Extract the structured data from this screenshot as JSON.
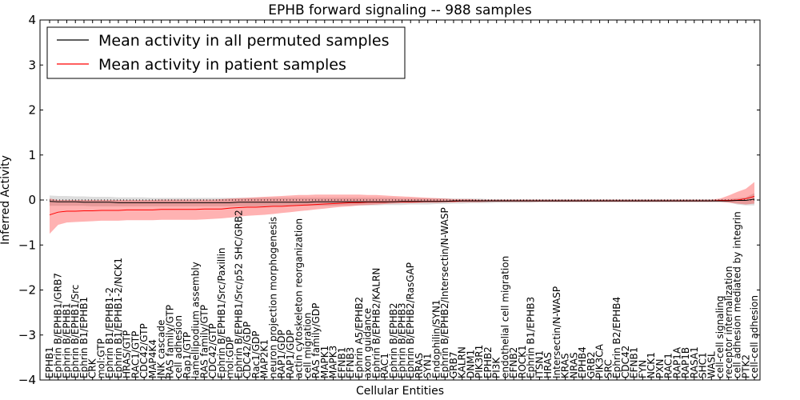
{
  "chart_data": {
    "type": "line",
    "title": "EPHB forward signaling -- 988 samples",
    "xlabel": "Cellular Entities",
    "ylabel": "Inferred Activity",
    "ylim": [
      -4,
      4
    ],
    "yticks": [
      -4,
      -3,
      -2,
      -1,
      0,
      1,
      2,
      3,
      4
    ],
    "ytick_labels": [
      "−4",
      "−3",
      "−2",
      "−1",
      "0",
      "1",
      "2",
      "3",
      "4"
    ],
    "legend_position": "top-left",
    "reference_line": {
      "value": 0,
      "style": "dotted"
    },
    "categories": [
      "EPHB1",
      "Ephrin B/EPHB1/GRB7",
      "Ephrin B/EPHB1",
      "Ephrin B/EPHB1/Src",
      "Ephrin B1/EPHB1",
      "CRK",
      "mol:GTP",
      "Ephrin B1/EPHB1-2",
      "Ephrin B1/EPHB1-2/NCK1",
      "HRAS/GTP",
      "RAC1/GTP",
      "CDC42/GTP",
      "MAP4K4",
      "JNK cascade",
      "RAS family/GTP",
      "cell adhesion",
      "Rap1/GTP",
      "lamellipodium assembly",
      "RAS family/GTP",
      "CDC42/GTP",
      "Ephrin B/EPHB1/Src/Paxillin",
      "mol:GDP",
      "Ephrin B/EPHB1/Src/p52 SHC/GRB2",
      "CDC42/GDP",
      "Rac1/GDP",
      "MAP2K1",
      "neuron projection morphogenesis",
      "RAP1/GDP",
      "RAP1/GDP",
      "actin cytoskeleton reorganization",
      "cell migration",
      "RAS family/GDP",
      "MAPK1",
      "MAPK3",
      "EFNB1",
      "EFNB3",
      "Ephrin A5/EPHB2",
      "axon guidance",
      "Ephrin B/EPHB2/KALRN",
      "RAC1",
      "Ephrin B/EPHB2",
      "Ephrin B/EPHB3",
      "Ephrin B/EPHB2/RasGAP",
      "RRAS",
      "SYN1",
      "Endophilin/SYN1",
      "Ephrin B/EPHB2/Intersectin/N-WASP",
      "GRB7",
      "KALRN",
      "DNM1",
      "PIK3R1",
      "EPHB2",
      "PI3K",
      "endothelial cell migration",
      "EFNB2",
      "ROCK1",
      "Ephrin B1/EPHB3",
      "ITSN1",
      "HRAS",
      "Intersectin/N-WASP",
      "KRAS",
      "NRAS",
      "EPHB4",
      "GRB2",
      "PIK3CA",
      "SRC",
      "Ephrin B2/EPHB4",
      "CDC42",
      "EFNB1",
      "FYN",
      "NCK1",
      "PXN",
      "RAC1",
      "RAP1A",
      "RAP1B",
      "RASA1",
      "SHC1",
      "WASL",
      "cell-cell signaling",
      "receptor internalization",
      "cell adhesion mediated by integrin",
      "PTK2",
      "cell-cell adhesion"
    ],
    "series": [
      {
        "name": "Mean activity in all permuted samples",
        "color": "#000000",
        "band_color": "#b4b4b4",
        "values": [
          -0.03,
          -0.04,
          -0.04,
          -0.04,
          -0.05,
          -0.05,
          -0.05,
          -0.05,
          -0.06,
          -0.06,
          -0.06,
          -0.06,
          -0.06,
          -0.06,
          -0.06,
          -0.06,
          -0.06,
          -0.06,
          -0.06,
          -0.06,
          -0.06,
          -0.06,
          -0.05,
          -0.05,
          -0.05,
          -0.05,
          -0.05,
          -0.05,
          -0.05,
          -0.05,
          -0.05,
          -0.04,
          -0.04,
          -0.04,
          -0.04,
          -0.04,
          -0.04,
          -0.04,
          -0.04,
          -0.04,
          -0.04,
          -0.03,
          -0.03,
          -0.03,
          -0.03,
          -0.03,
          -0.03,
          -0.02,
          -0.02,
          -0.02,
          -0.02,
          -0.02,
          -0.02,
          -0.02,
          -0.02,
          -0.02,
          -0.02,
          -0.02,
          -0.02,
          -0.02,
          -0.02,
          -0.02,
          -0.02,
          -0.02,
          -0.02,
          -0.02,
          -0.02,
          -0.02,
          -0.02,
          -0.02,
          -0.02,
          -0.02,
          -0.02,
          -0.02,
          -0.02,
          -0.02,
          -0.02,
          -0.02,
          -0.02,
          -0.02,
          -0.01,
          -0.01,
          0.02
        ],
        "lower": [
          -0.13,
          -0.13,
          -0.13,
          -0.13,
          -0.13,
          -0.14,
          -0.14,
          -0.14,
          -0.14,
          -0.14,
          -0.14,
          -0.14,
          -0.14,
          -0.14,
          -0.14,
          -0.14,
          -0.14,
          -0.14,
          -0.14,
          -0.14,
          -0.14,
          -0.14,
          -0.14,
          -0.14,
          -0.14,
          -0.14,
          -0.13,
          -0.13,
          -0.13,
          -0.13,
          -0.13,
          -0.13,
          -0.13,
          -0.13,
          -0.12,
          -0.12,
          -0.12,
          -0.12,
          -0.12,
          -0.11,
          -0.11,
          -0.11,
          -0.1,
          -0.1,
          -0.1,
          -0.09,
          -0.09,
          -0.08,
          -0.08,
          -0.07,
          -0.07,
          -0.07,
          -0.06,
          -0.06,
          -0.06,
          -0.06,
          -0.06,
          -0.05,
          -0.05,
          -0.05,
          -0.05,
          -0.05,
          -0.05,
          -0.05,
          -0.05,
          -0.05,
          -0.05,
          -0.05,
          -0.05,
          -0.05,
          -0.05,
          -0.05,
          -0.05,
          -0.05,
          -0.05,
          -0.05,
          -0.05,
          -0.05,
          -0.05,
          -0.05,
          -0.1,
          -0.12,
          -0.12
        ],
        "upper": [
          0.1,
          0.09,
          0.09,
          0.08,
          0.08,
          0.07,
          0.07,
          0.07,
          0.06,
          0.06,
          0.06,
          0.06,
          0.05,
          0.05,
          0.05,
          0.05,
          0.05,
          0.05,
          0.05,
          0.05,
          0.05,
          0.05,
          0.05,
          0.05,
          0.05,
          0.05,
          0.05,
          0.05,
          0.05,
          0.05,
          0.05,
          0.05,
          0.05,
          0.05,
          0.05,
          0.05,
          0.05,
          0.05,
          0.05,
          0.05,
          0.05,
          0.04,
          0.04,
          0.04,
          0.04,
          0.04,
          0.04,
          0.03,
          0.03,
          0.03,
          0.03,
          0.02,
          0.02,
          0.02,
          0.02,
          0.02,
          0.02,
          0.02,
          0.02,
          0.02,
          0.02,
          0.02,
          0.02,
          0.02,
          0.02,
          0.02,
          0.02,
          0.02,
          0.02,
          0.02,
          0.02,
          0.02,
          0.02,
          0.02,
          0.02,
          0.02,
          0.02,
          0.02,
          0.02,
          0.02,
          0.04,
          0.06,
          0.15
        ]
      },
      {
        "name": "Mean activity in patient samples",
        "color": "#ff0000",
        "band_color": "#ff0000",
        "values": [
          -0.33,
          -0.27,
          -0.25,
          -0.25,
          -0.24,
          -0.24,
          -0.23,
          -0.23,
          -0.23,
          -0.22,
          -0.22,
          -0.22,
          -0.22,
          -0.21,
          -0.21,
          -0.21,
          -0.21,
          -0.21,
          -0.2,
          -0.2,
          -0.2,
          -0.18,
          -0.17,
          -0.16,
          -0.16,
          -0.15,
          -0.14,
          -0.14,
          -0.13,
          -0.12,
          -0.11,
          -0.1,
          -0.09,
          -0.08,
          -0.07,
          -0.06,
          -0.06,
          -0.05,
          -0.05,
          -0.05,
          -0.04,
          -0.04,
          -0.04,
          -0.04,
          -0.03,
          -0.03,
          -0.03,
          -0.03,
          -0.02,
          -0.02,
          -0.02,
          -0.02,
          -0.02,
          -0.02,
          -0.02,
          -0.02,
          -0.02,
          -0.02,
          -0.02,
          -0.02,
          -0.02,
          -0.02,
          -0.02,
          -0.02,
          -0.02,
          -0.02,
          -0.02,
          -0.02,
          -0.02,
          -0.02,
          -0.02,
          -0.02,
          -0.02,
          -0.02,
          -0.02,
          -0.02,
          -0.02,
          -0.02,
          -0.01,
          -0.01,
          0.0,
          0.03,
          0.08
        ],
        "lower": [
          -0.75,
          -0.55,
          -0.5,
          -0.49,
          -0.48,
          -0.47,
          -0.46,
          -0.46,
          -0.46,
          -0.45,
          -0.45,
          -0.45,
          -0.45,
          -0.44,
          -0.44,
          -0.44,
          -0.44,
          -0.44,
          -0.43,
          -0.42,
          -0.41,
          -0.39,
          -0.37,
          -0.35,
          -0.34,
          -0.33,
          -0.31,
          -0.29,
          -0.27,
          -0.25,
          -0.23,
          -0.21,
          -0.19,
          -0.17,
          -0.15,
          -0.14,
          -0.12,
          -0.11,
          -0.1,
          -0.09,
          -0.08,
          -0.07,
          -0.07,
          -0.06,
          -0.06,
          -0.06,
          -0.05,
          -0.05,
          -0.05,
          -0.05,
          -0.05,
          -0.04,
          -0.04,
          -0.04,
          -0.04,
          -0.04,
          -0.04,
          -0.04,
          -0.04,
          -0.04,
          -0.04,
          -0.04,
          -0.04,
          -0.04,
          -0.04,
          -0.04,
          -0.04,
          -0.04,
          -0.04,
          -0.04,
          -0.04,
          -0.04,
          -0.04,
          -0.04,
          -0.04,
          -0.04,
          -0.04,
          -0.04,
          -0.04,
          -0.06,
          -0.08,
          -0.1,
          -0.08
        ],
        "upper": [
          0.03,
          0.0,
          0.0,
          0.0,
          0.0,
          0.0,
          0.0,
          0.0,
          0.0,
          0.0,
          0.0,
          0.0,
          0.0,
          0.01,
          0.01,
          0.01,
          0.01,
          0.01,
          0.01,
          0.01,
          0.02,
          0.03,
          0.04,
          0.05,
          0.06,
          0.07,
          0.08,
          0.09,
          0.1,
          0.11,
          0.11,
          0.12,
          0.12,
          0.12,
          0.12,
          0.12,
          0.12,
          0.11,
          0.11,
          0.1,
          0.09,
          0.08,
          0.07,
          0.06,
          0.05,
          0.04,
          0.03,
          0.02,
          0.02,
          0.02,
          0.01,
          0.01,
          0.01,
          0.01,
          0.01,
          0.01,
          0.01,
          0.01,
          0.01,
          0.01,
          0.01,
          0.01,
          0.01,
          0.01,
          0.01,
          0.01,
          0.01,
          0.01,
          0.01,
          0.01,
          0.01,
          0.01,
          0.01,
          0.01,
          0.01,
          0.01,
          0.01,
          0.01,
          0.03,
          0.1,
          0.18,
          0.25,
          0.4
        ]
      }
    ]
  }
}
